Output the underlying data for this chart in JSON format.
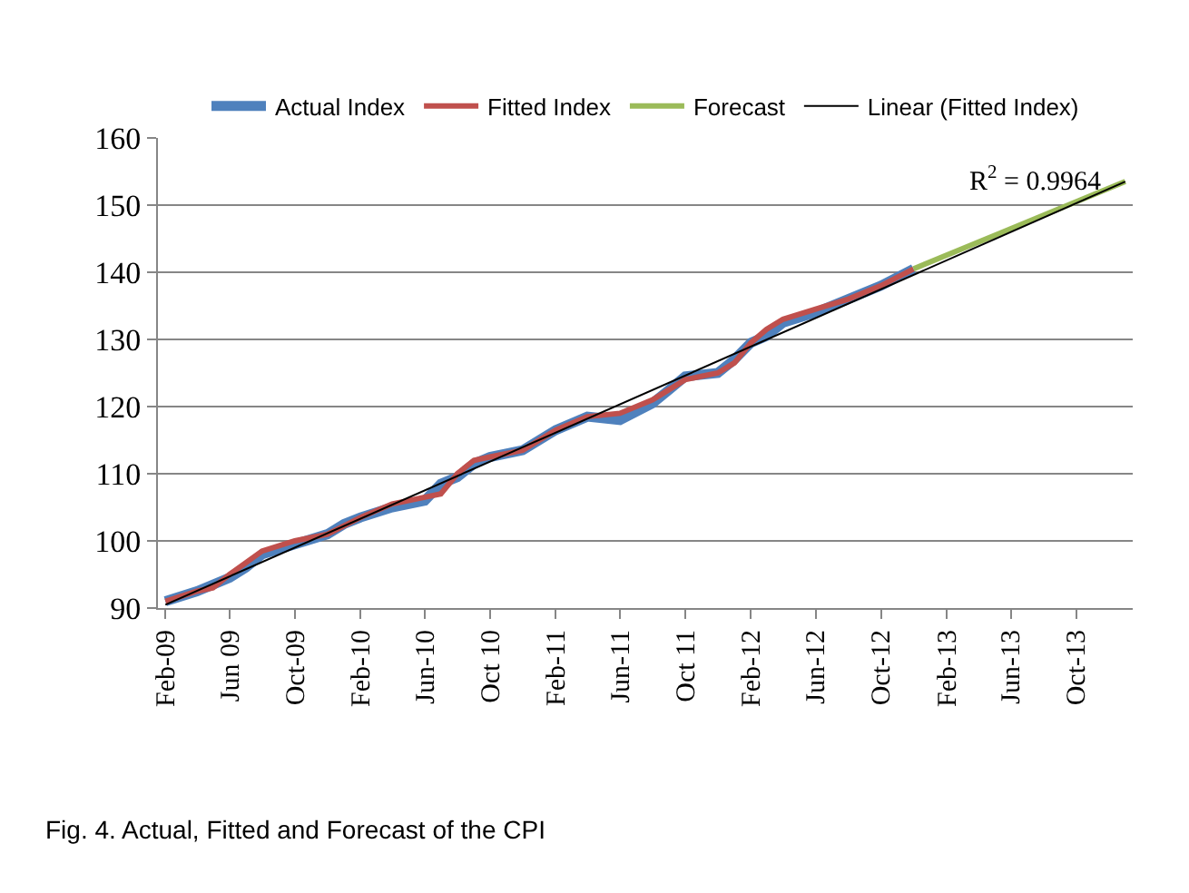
{
  "chart_data": {
    "type": "line",
    "series": [
      {
        "name": "Actual Index",
        "color": "#4f81bd",
        "x": [
          "2009-02",
          "2009-04",
          "2009-06",
          "2009-07",
          "2009-08",
          "2009-10",
          "2009-12",
          "2010-01",
          "2010-02",
          "2010-04",
          "2010-06",
          "2010-07",
          "2010-08",
          "2010-09",
          "2010-10",
          "2010-12",
          "2011-02",
          "2011-04",
          "2011-06",
          "2011-08",
          "2011-09",
          "2011-10",
          "2011-12",
          "2012-01",
          "2012-02",
          "2012-03",
          "2012-04",
          "2012-06",
          "2012-08",
          "2012-10",
          "2012-12"
        ],
        "values": [
          91.0,
          92.5,
          94.5,
          96,
          98,
          99.5,
          101,
          102.5,
          103.5,
          105,
          106,
          108.5,
          109.5,
          111.5,
          112.5,
          113.5,
          116.5,
          118.5,
          118,
          120.5,
          122.5,
          124.5,
          125,
          127,
          129.5,
          130.5,
          132.5,
          134,
          136,
          138,
          140.5
        ]
      },
      {
        "name": "Fitted Index",
        "color": "#c0504d",
        "x": [
          "2009-02",
          "2009-04",
          "2009-05",
          "2009-06",
          "2009-08",
          "2009-10",
          "2009-12",
          "2010-02",
          "2010-04",
          "2010-06",
          "2010-07",
          "2010-08",
          "2010-09",
          "2010-10",
          "2010-12",
          "2011-02",
          "2011-04",
          "2011-06",
          "2011-08",
          "2011-10",
          "2011-12",
          "2012-01",
          "2012-02",
          "2012-03",
          "2012-04",
          "2012-06",
          "2012-08",
          "2012-10",
          "2012-12"
        ],
        "values": [
          91,
          92.5,
          93,
          95,
          98.5,
          100,
          101,
          103.5,
          105.5,
          106.5,
          107,
          110,
          112,
          112.5,
          113.5,
          116.5,
          118.5,
          119,
          121,
          124,
          125,
          126.5,
          129.5,
          131.5,
          133,
          134.5,
          136,
          138,
          140.5
        ]
      },
      {
        "name": "Forecast",
        "color": "#9bbb59",
        "x": [
          "2012-12",
          "2014-01"
        ],
        "values": [
          140.5,
          153.5
        ]
      },
      {
        "name": "Linear (Fitted Index)",
        "color": "#000000",
        "x": [
          "2009-02",
          "2014-01"
        ],
        "values": [
          90.5,
          153.5
        ]
      }
    ],
    "xlim": [
      "2009-01-18",
      "2014-01-15"
    ],
    "xticks": [
      {
        "value": "2009-02",
        "label": "Feb-09"
      },
      {
        "value": "2009-06",
        "label": "Jun 09"
      },
      {
        "value": "2009-10",
        "label": "Oct-09"
      },
      {
        "value": "2010-02",
        "label": "Feb-10"
      },
      {
        "value": "2010-06",
        "label": "Jun-10"
      },
      {
        "value": "2010-10",
        "label": "Oct 10"
      },
      {
        "value": "2011-02",
        "label": "Feb-11"
      },
      {
        "value": "2011-06",
        "label": "Jun-11"
      },
      {
        "value": "2011-10",
        "label": "Oct 11"
      },
      {
        "value": "2012-02",
        "label": "Feb-12"
      },
      {
        "value": "2012-06",
        "label": "Jun-12"
      },
      {
        "value": "2012-10",
        "label": "Oct-12"
      },
      {
        "value": "2013-02",
        "label": "Feb-13"
      },
      {
        "value": "2013-06",
        "label": "Jun-13"
      },
      {
        "value": "2013-10",
        "label": "Oct-13"
      }
    ],
    "ylim": [
      90,
      160
    ],
    "yticks": [
      90,
      100,
      110,
      120,
      130,
      140,
      150,
      160
    ],
    "grid": "y",
    "legend": "top",
    "marker": "none",
    "line_style": "solid",
    "annotations": [
      "R$^{2}$ = 0.9964",
      "Fig. 4. Actual, Fitted and Forecast of the CPI"
    ]
  }
}
